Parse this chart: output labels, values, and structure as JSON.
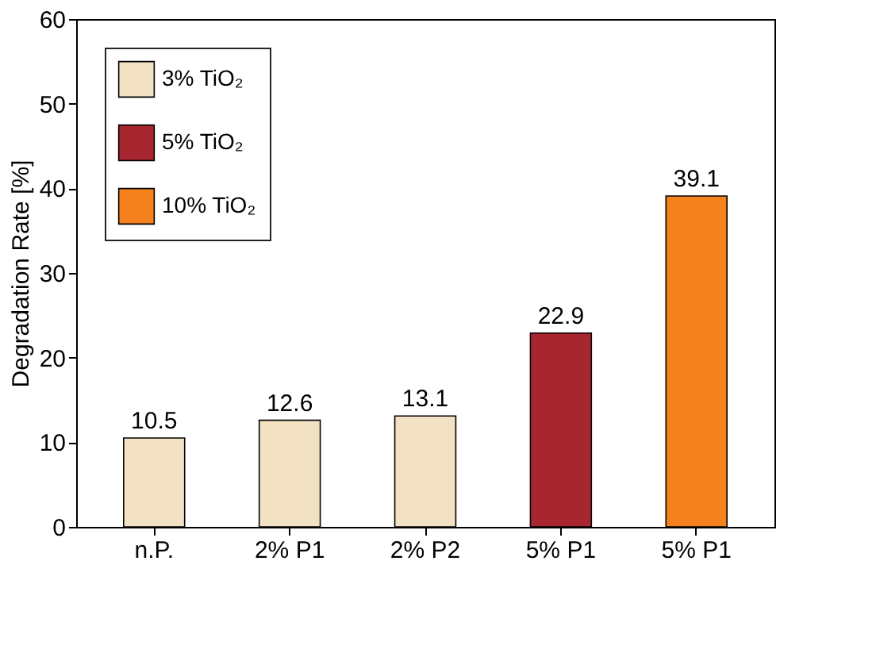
{
  "chart_data": {
    "type": "bar",
    "ylabel": "Degradation Rate [%]",
    "categories": [
      "n.P.",
      "2% P1",
      "2% P2",
      "5% P1",
      "5% P1"
    ],
    "series": [
      {
        "name": "3% TiO₂",
        "color": "#f2e1c2",
        "values": [
          10.5,
          12.6,
          13.1,
          null,
          null
        ]
      },
      {
        "name": "5% TiO₂",
        "color": "#a8262f",
        "values": [
          null,
          null,
          null,
          22.9,
          null
        ]
      },
      {
        "name": "10% TiO₂",
        "color": "#f5821f",
        "values": [
          null,
          null,
          null,
          null,
          39.1
        ]
      }
    ],
    "ylim": [
      0,
      60
    ],
    "yticks": [
      0,
      10,
      20,
      30,
      40,
      50,
      60
    ],
    "data_labels": true,
    "legend": "top left",
    "grid": false
  }
}
